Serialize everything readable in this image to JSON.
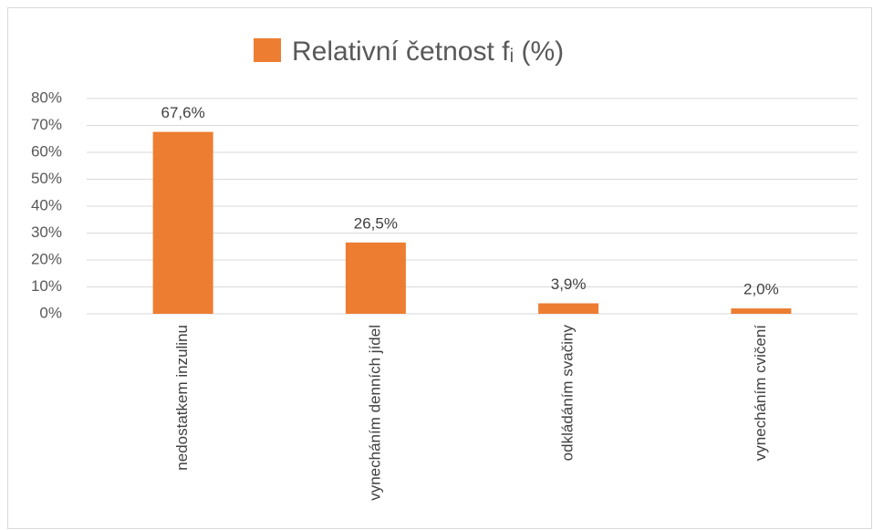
{
  "chart_data": {
    "type": "bar",
    "categories": [
      "nedostatkem inzulinu",
      "vynecháním denních jídel",
      "odkládáním svačiny",
      "vynecháním cvičení"
    ],
    "series": [
      {
        "name": "Relativní četnost fᵢ (%)",
        "color": "#ed7d31",
        "values": [
          67.6,
          26.5,
          3.9,
          2.0
        ],
        "value_labels": [
          "67,6%",
          "26,5%",
          "3,9%",
          "2,0%"
        ]
      }
    ],
    "ylim": [
      0,
      80
    ],
    "yticks": [
      {
        "value": 0,
        "label": "0%"
      },
      {
        "value": 10,
        "label": "10%"
      },
      {
        "value": 20,
        "label": "20%"
      },
      {
        "value": 30,
        "label": "30%"
      },
      {
        "value": 40,
        "label": "40%"
      },
      {
        "value": 50,
        "label": "50%"
      },
      {
        "value": 60,
        "label": "60%"
      },
      {
        "value": 70,
        "label": "70%"
      },
      {
        "value": 80,
        "label": "80%"
      }
    ],
    "grid": true,
    "legend": "top"
  }
}
